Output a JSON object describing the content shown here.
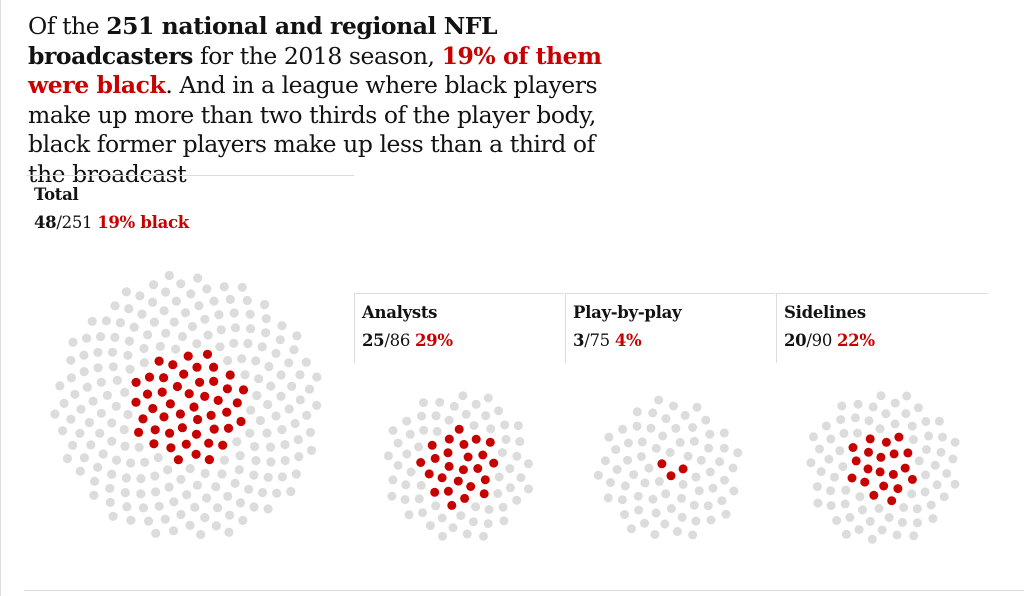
{
  "headline": {
    "t1": "Of the ",
    "b1": "251 national and regional NFL broadcasters",
    "t2": " for the 2018 season, ",
    "r1": "19% of them were black",
    "t3": ". And in a league where black players make up more than two thirds of the player body, black former players make up less than a third of the broadcast"
  },
  "colors": {
    "black_dot": "#c70000",
    "other_dot": "#dcdcdc",
    "accent": "#c70000"
  },
  "chart_data": {
    "type": "dot-cluster",
    "groups": [
      {
        "name": "Total",
        "black": 48,
        "total": 251,
        "black_label": "19% black"
      },
      {
        "name": "Analysts",
        "black": 25,
        "total": 86,
        "black_label": "29%"
      },
      {
        "name": "Play-by-play",
        "black": 3,
        "total": 75,
        "black_label": "4%"
      },
      {
        "name": "Sidelines",
        "black": 20,
        "total": 90,
        "black_label": "22%"
      }
    ]
  }
}
